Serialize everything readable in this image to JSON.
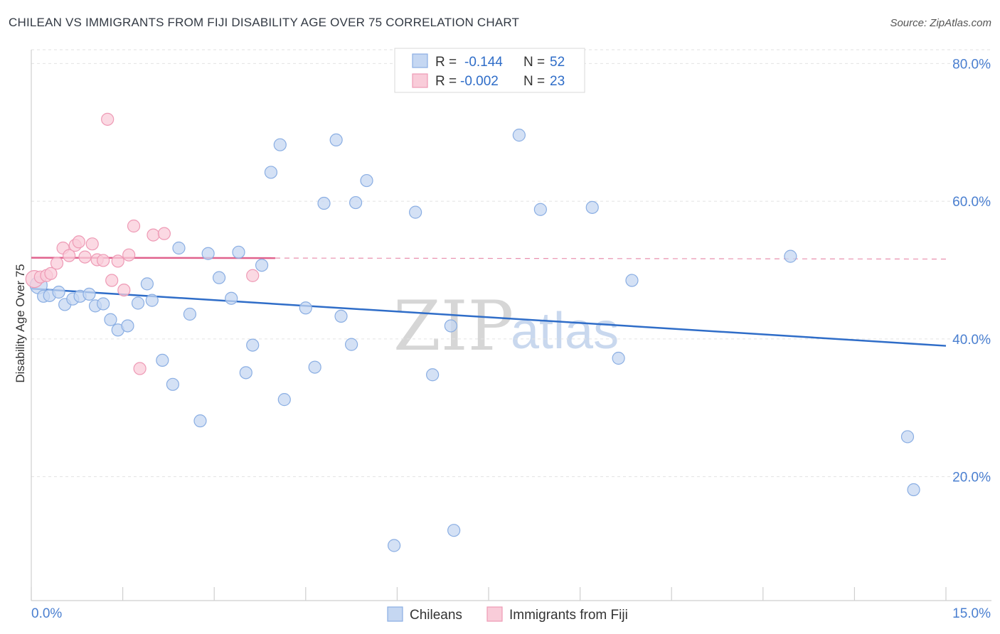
{
  "title": "CHILEAN VS IMMIGRANTS FROM FIJI DISABILITY AGE OVER 75 CORRELATION CHART",
  "source": "Source: ZipAtlas.com",
  "watermark": {
    "zip": "ZIP",
    "atlas": "atlas"
  },
  "legend": {
    "rows": [
      {
        "r_label": "R =",
        "r_value": "-0.144",
        "n_label": "N =",
        "n_value": "52"
      },
      {
        "r_label": "R =",
        "r_value": "-0.002",
        "n_label": "N =",
        "n_value": "23"
      }
    ]
  },
  "bottom_legend": {
    "chileans": "Chileans",
    "fiji": "Immigrants from Fiji"
  },
  "colors": {
    "blue_fill": "#c5d7f2",
    "blue_stroke": "#8aaee3",
    "blue_line": "#2f6dc8",
    "pink_fill": "#f9ccd9",
    "pink_stroke": "#ee9ab5",
    "pink_line": "#e0628d",
    "grid": "#e2e2e2",
    "tick_label": "#4a7fd0"
  },
  "chart_data": {
    "type": "scatter",
    "title": "CHILEAN VS IMMIGRANTS FROM FIJI DISABILITY AGE OVER 75 CORRELATION CHART",
    "xlabel": "",
    "ylabel": "Disability Age Over 75",
    "xlim": [
      0,
      15
    ],
    "ylim": [
      2,
      82
    ],
    "x_tick_labels": [
      "0.0%",
      "15.0%"
    ],
    "y_ticks": [
      20,
      40,
      60,
      80
    ],
    "y_tick_labels": [
      "20.0%",
      "40.0%",
      "60.0%",
      "80.0%"
    ],
    "series": [
      {
        "name": "Chileans",
        "color": "#2f6dc8",
        "trend": {
          "x": [
            0,
            15
          ],
          "y": [
            47.3,
            39.0
          ],
          "dashed_from": null
        },
        "points": [
          [
            0.12,
            47.8
          ],
          [
            0.2,
            46.2
          ],
          [
            0.3,
            46.3
          ],
          [
            0.45,
            46.8
          ],
          [
            0.55,
            45.0
          ],
          [
            0.68,
            45.8
          ],
          [
            0.8,
            46.2
          ],
          [
            0.95,
            46.5
          ],
          [
            1.05,
            44.8
          ],
          [
            1.18,
            45.1
          ],
          [
            1.3,
            42.8
          ],
          [
            1.42,
            41.3
          ],
          [
            1.58,
            41.9
          ],
          [
            1.75,
            45.2
          ],
          [
            1.9,
            48.0
          ],
          [
            1.98,
            45.6
          ],
          [
            2.15,
            36.9
          ],
          [
            2.32,
            33.4
          ],
          [
            2.42,
            53.2
          ],
          [
            2.6,
            43.6
          ],
          [
            2.77,
            28.1
          ],
          [
            2.9,
            52.4
          ],
          [
            3.08,
            48.9
          ],
          [
            3.28,
            45.9
          ],
          [
            3.4,
            52.6
          ],
          [
            3.52,
            35.1
          ],
          [
            3.63,
            39.1
          ],
          [
            3.78,
            50.7
          ],
          [
            3.93,
            64.2
          ],
          [
            4.08,
            68.2
          ],
          [
            4.15,
            31.2
          ],
          [
            4.5,
            44.5
          ],
          [
            4.65,
            35.9
          ],
          [
            4.8,
            59.7
          ],
          [
            5.0,
            68.9
          ],
          [
            5.08,
            43.3
          ],
          [
            5.25,
            39.2
          ],
          [
            5.32,
            59.8
          ],
          [
            5.5,
            63.0
          ],
          [
            5.95,
            10.0
          ],
          [
            6.3,
            58.4
          ],
          [
            6.58,
            34.8
          ],
          [
            6.88,
            41.9
          ],
          [
            6.93,
            12.2
          ],
          [
            8.0,
            69.6
          ],
          [
            8.35,
            58.8
          ],
          [
            9.2,
            59.1
          ],
          [
            9.63,
            37.2
          ],
          [
            9.85,
            48.5
          ],
          [
            12.45,
            52.0
          ],
          [
            14.37,
            25.8
          ],
          [
            14.47,
            18.1
          ]
        ]
      },
      {
        "name": "Immigrants from Fiji",
        "color": "#e0628d",
        "trend": {
          "x": [
            0,
            15
          ],
          "y": [
            51.8,
            51.6
          ],
          "dashed_from": 4.0
        },
        "points": [
          [
            0.05,
            48.7
          ],
          [
            0.15,
            49.0
          ],
          [
            0.25,
            49.2
          ],
          [
            0.32,
            49.5
          ],
          [
            0.42,
            51.0
          ],
          [
            0.52,
            53.2
          ],
          [
            0.62,
            52.1
          ],
          [
            0.72,
            53.6
          ],
          [
            0.78,
            54.1
          ],
          [
            0.88,
            51.9
          ],
          [
            1.0,
            53.8
          ],
          [
            1.08,
            51.5
          ],
          [
            1.18,
            51.4
          ],
          [
            1.25,
            71.9
          ],
          [
            1.32,
            48.5
          ],
          [
            1.42,
            51.3
          ],
          [
            1.52,
            47.1
          ],
          [
            1.6,
            52.2
          ],
          [
            1.68,
            56.4
          ],
          [
            1.78,
            35.7
          ],
          [
            2.0,
            55.1
          ],
          [
            2.18,
            55.3
          ],
          [
            3.63,
            49.2
          ]
        ]
      }
    ]
  }
}
